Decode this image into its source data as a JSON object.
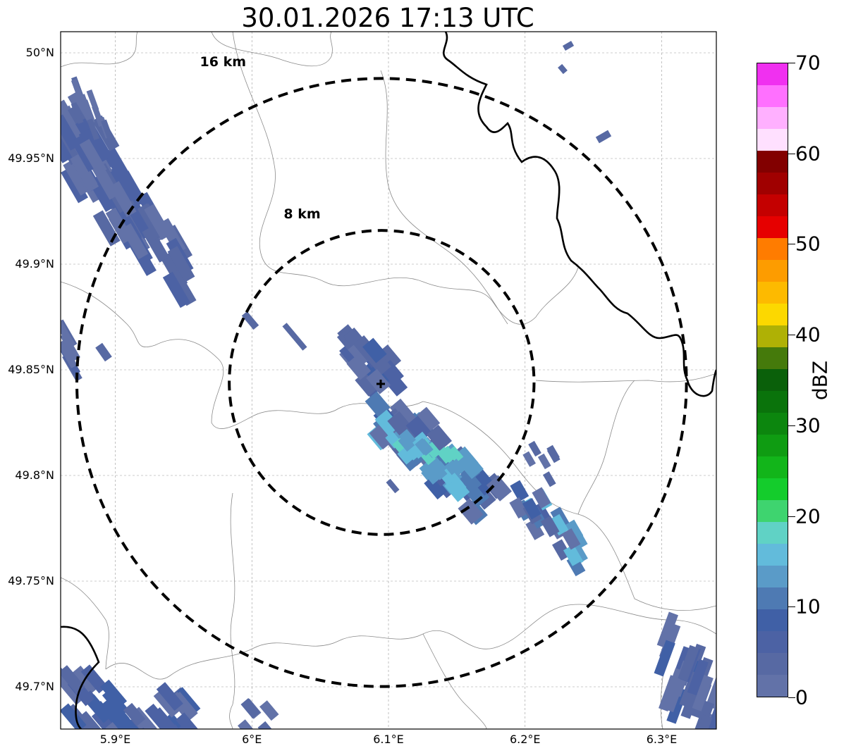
{
  "title": "30.01.2026 17:13 UTC",
  "map": {
    "extent": {
      "lon_min": 5.86,
      "lon_max": 6.34,
      "lat_min": 49.68,
      "lat_max": 50.01
    },
    "radar_center": {
      "lon": 6.095,
      "lat": 49.844
    },
    "lat_ticks": [
      {
        "value": 50.0,
        "label": "50°N"
      },
      {
        "value": 49.95,
        "label": "49.95°N"
      },
      {
        "value": 49.9,
        "label": "49.9°N"
      },
      {
        "value": 49.85,
        "label": "49.85°N"
      },
      {
        "value": 49.8,
        "label": "49.8°N"
      },
      {
        "value": 49.75,
        "label": "49.75°N"
      },
      {
        "value": 49.7,
        "label": "49.7°N"
      }
    ],
    "lon_ticks": [
      {
        "value": 5.9,
        "label": "5.9°E"
      },
      {
        "value": 6.0,
        "label": "6°E"
      },
      {
        "value": 6.1,
        "label": "6.1°E"
      },
      {
        "value": 6.2,
        "label": "6.2°E"
      },
      {
        "value": 6.3,
        "label": "6.3°E"
      }
    ],
    "range_rings": [
      {
        "radius_km": 8,
        "label": "8 km"
      },
      {
        "radius_km": 16,
        "label": "16 km"
      }
    ],
    "border_color": "#000000",
    "admin_color": "#888888",
    "grid": true
  },
  "colorbar": {
    "unit": "dBZ",
    "min": 0,
    "max": 70,
    "step": 2.5,
    "tick_labels": [
      "0",
      "10",
      "20",
      "30",
      "40",
      "50",
      "60",
      "70"
    ],
    "colors": [
      "#6272a8",
      "#5769a3",
      "#4c62a4",
      "#4060a6",
      "#4e7ab3",
      "#5a9bc8",
      "#62bbdb",
      "#60d2c5",
      "#3ed46f",
      "#14cc2c",
      "#12b51a",
      "#0f9c12",
      "#0c860e",
      "#0a730b",
      "#0a600a",
      "#457a0b",
      "#afb105",
      "#fcd800",
      "#fdba00",
      "#fd9c00",
      "#ff7c00",
      "#e60000",
      "#c40000",
      "#a00000",
      "#820000",
      "#ffe0ff",
      "#ffb0ff",
      "#ff70ff",
      "#f030f0"
    ]
  }
}
